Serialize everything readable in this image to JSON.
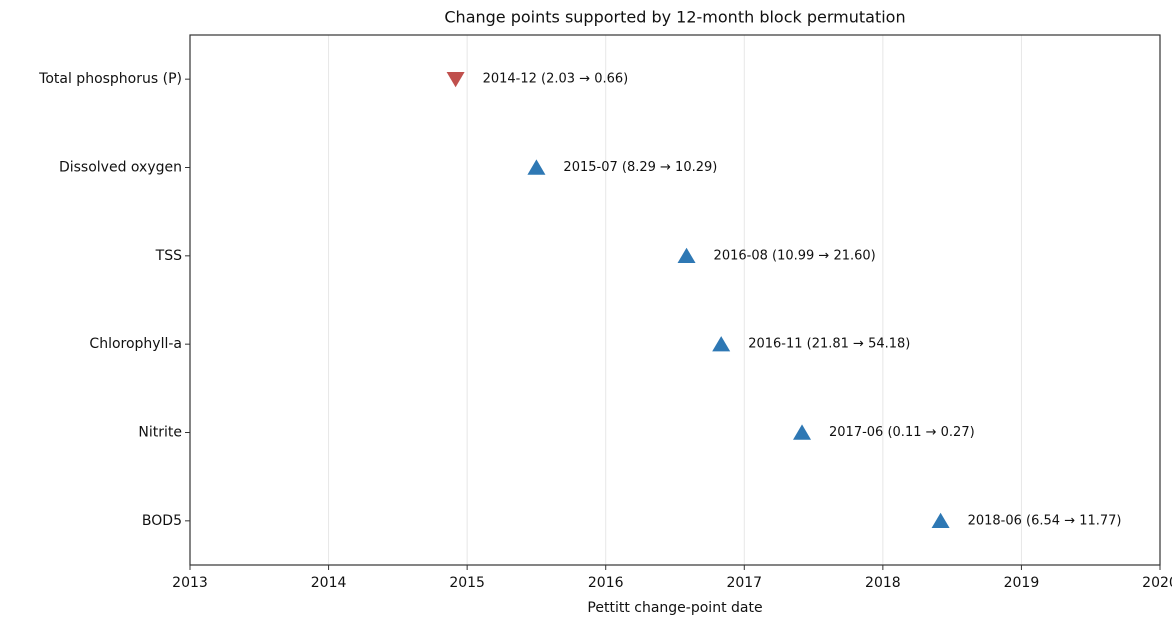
{
  "chart_data": {
    "type": "dotplot",
    "title": "Change points supported by 12-month block permutation",
    "xlabel": "Pettitt change-point date",
    "categories": [
      "Total phosphorus (P)",
      "Dissolved oxygen",
      "TSS",
      "Chlorophyll-a",
      "Nitrite",
      "BOD5"
    ],
    "x": [
      "2014-12",
      "2015-07",
      "2016-08",
      "2016-11",
      "2017-06",
      "2018-06"
    ],
    "annotations": [
      "2014-12  (2.03 → 0.66)",
      "2015-07  (8.29 → 10.29)",
      "2016-08  (10.99 → 21.60)",
      "2016-11  (21.81 → 54.18)",
      "2017-06  (0.11 → 0.27)",
      "2018-06  (6.54 → 11.77)"
    ],
    "markers": [
      "down",
      "up",
      "up",
      "up",
      "up",
      "up"
    ],
    "colors": [
      "#c0504d",
      "#2e78b4",
      "#2e78b4",
      "#2e78b4",
      "#2e78b4",
      "#2e78b4"
    ],
    "xlim": [
      2013,
      2020
    ],
    "xticks": [
      2013,
      2014,
      2015,
      2016,
      2017,
      2018,
      2019,
      2020
    ],
    "grid": true
  }
}
